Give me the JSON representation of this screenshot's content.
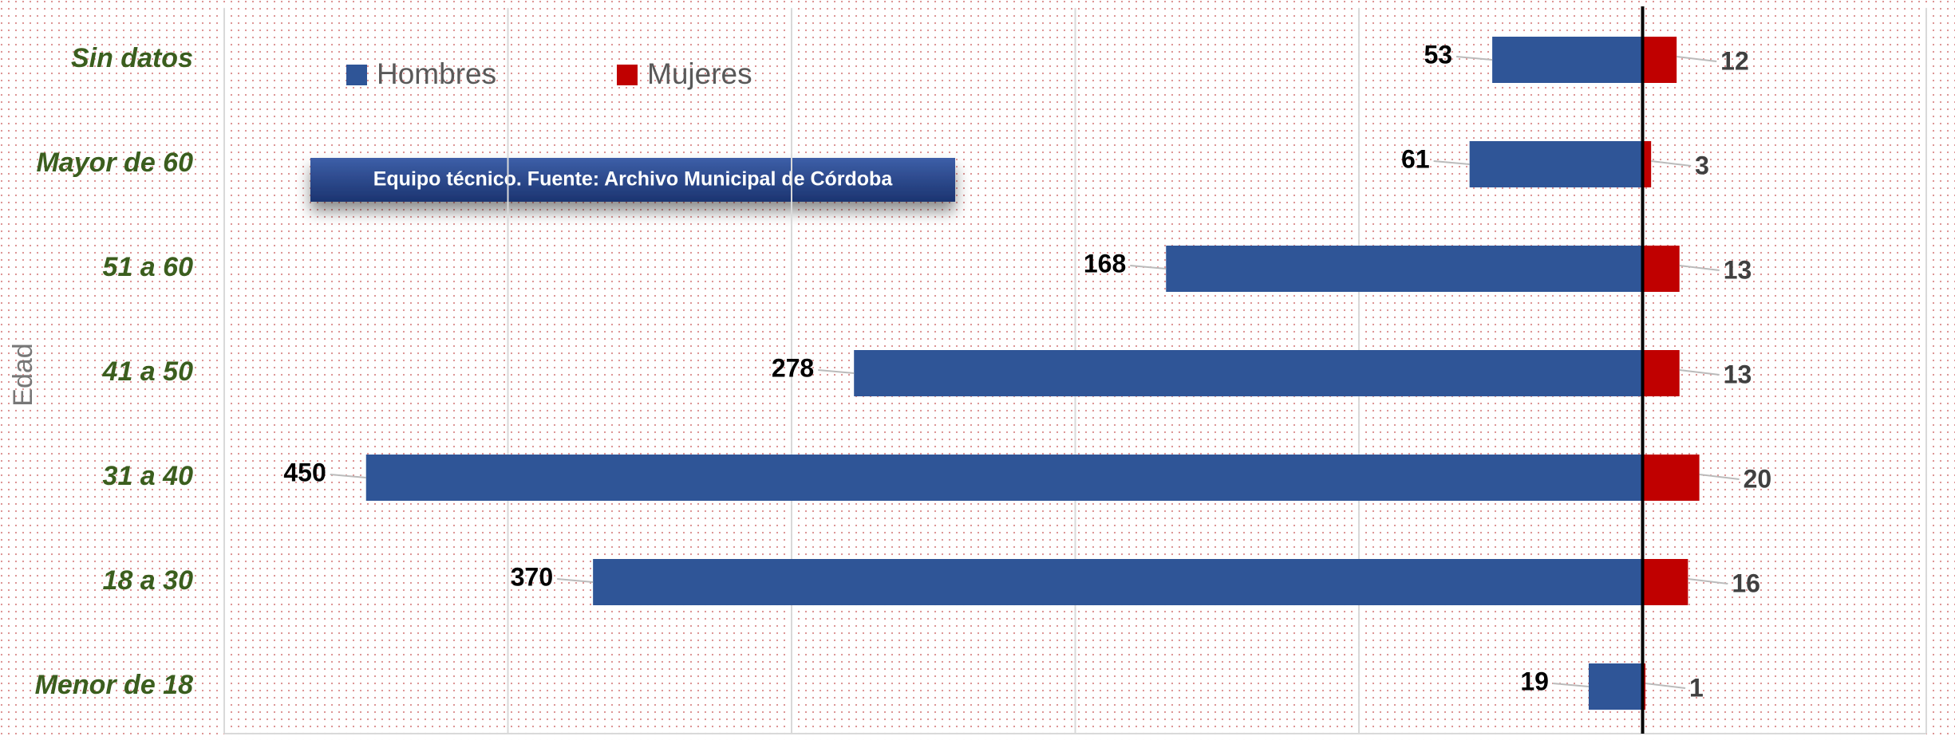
{
  "chart_data": {
    "type": "pyramid",
    "annotation": "Equipo técnico. Fuente: Archivo Municipal de Córdoba",
    "ylabel": "Edad",
    "categories": [
      "Sin datos",
      "Mayor de 60",
      "51 a 60",
      "41 a 50",
      "31 a 40",
      "18 a 30",
      "Menor de 18"
    ],
    "series": [
      {
        "name": "Hombres",
        "color": "#2f5597",
        "values": [
          53,
          61,
          168,
          278,
          450,
          370,
          19
        ]
      },
      {
        "name": "Mujeres",
        "color": "#c00000",
        "values": [
          12,
          3,
          13,
          13,
          20,
          16,
          1
        ]
      }
    ],
    "xlim": [
      -500,
      100
    ],
    "xticks": [
      -500,
      -400,
      -300,
      -200,
      -100,
      0,
      100
    ],
    "grid": true
  }
}
